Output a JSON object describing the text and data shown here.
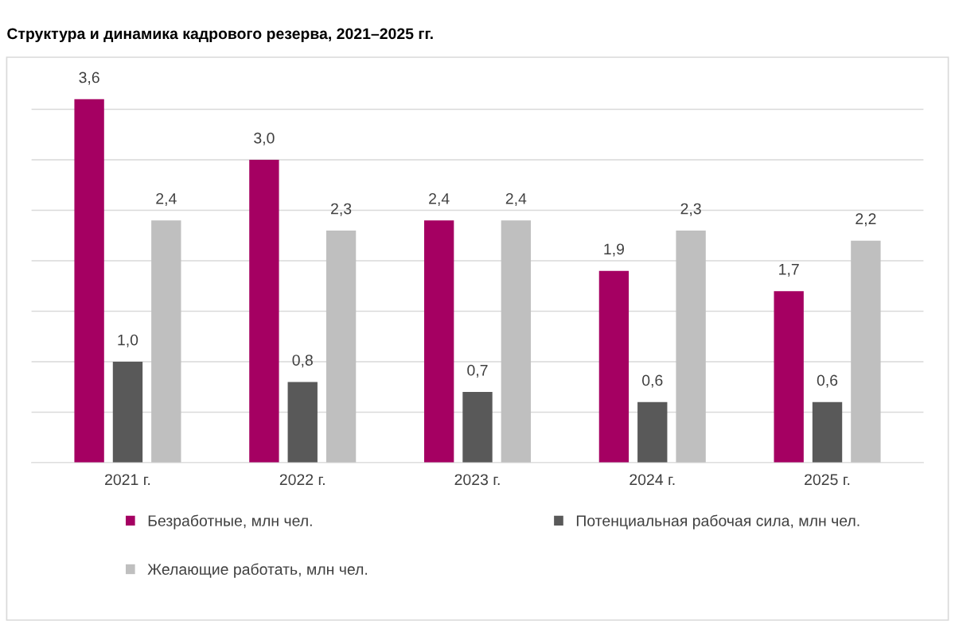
{
  "chart_data": {
    "type": "bar",
    "title": "Структура и динамика кадрового резерва, 2021–2025 гг.",
    "categories": [
      "2021 г.",
      "2022 г.",
      "2023 г.",
      "2024 г.",
      "2025 г."
    ],
    "series": [
      {
        "name": "Безработные, млн чел.",
        "color": "#a50062",
        "values": [
          3.6,
          3.0,
          2.4,
          1.9,
          1.7
        ],
        "value_labels": [
          "3,6",
          "3,0",
          "2,4",
          "1,9",
          "1,7"
        ]
      },
      {
        "name": "Потенциальная рабочая сила, млн чел.",
        "color": "#595959",
        "values": [
          1.0,
          0.8,
          0.7,
          0.6,
          0.6
        ],
        "value_labels": [
          "1,0",
          "0,8",
          "0,7",
          "0,6",
          "0,6"
        ]
      },
      {
        "name": "Желающие работать, млн чел.",
        "color": "#bfbfbf",
        "values": [
          2.4,
          2.3,
          2.4,
          2.3,
          2.2
        ],
        "value_labels": [
          "2,4",
          "2,3",
          "2,4",
          "2,3",
          "2,2"
        ]
      }
    ],
    "tick_labels": "x",
    "grid": "y",
    "legend": "bottom"
  }
}
